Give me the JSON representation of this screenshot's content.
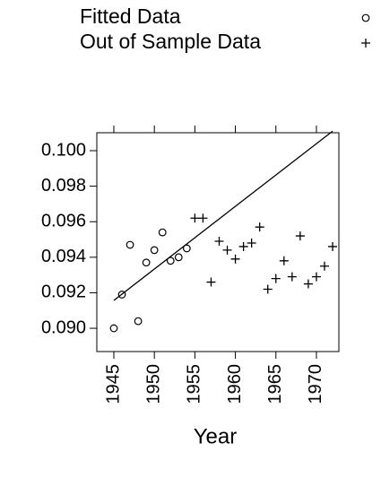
{
  "chart_data": {
    "type": "scatter",
    "xlabel": "Year",
    "xlim": [
      1942.9,
      1972.77
    ],
    "ylim": [
      0.08869,
      0.10101
    ],
    "xticks": [
      1945,
      1950,
      1955,
      1960,
      1965,
      1970
    ],
    "yticks": [
      {
        "value": 0.09,
        "label": "0.090"
      },
      0.092,
      0.094,
      0.096,
      0.098,
      {
        "value": 0.1,
        "label": "0.100"
      }
    ],
    "series": [
      {
        "name": "Fitted Data",
        "marker": "circle",
        "color": "#000000",
        "x": [
          1945,
          1946,
          1947,
          1948,
          1949,
          1950,
          1951,
          1952,
          1953,
          1954
        ],
        "values": [
          0.09,
          0.0919,
          0.0947,
          0.0904,
          0.0937,
          0.0944,
          0.0954,
          0.0938,
          0.094,
          0.0945
        ]
      },
      {
        "name": "Out of Sample Data",
        "marker": "plus",
        "color": "#000000",
        "x": [
          1955,
          1956,
          1957,
          1958,
          1959,
          1960,
          1961,
          1962,
          1963,
          1964,
          1965,
          1966,
          1967,
          1968,
          1969,
          1970,
          1971,
          1972
        ],
        "values": [
          0.0962,
          0.0962,
          0.0926,
          0.0949,
          0.0944,
          0.0939,
          0.0946,
          0.0948,
          0.0957,
          0.0922,
          0.0928,
          0.0938,
          0.0929,
          0.0952,
          0.0925,
          0.0929,
          0.0935,
          0.0946
        ]
      }
    ],
    "lines": [
      {
        "color": "#000000",
        "x": [
          1945,
          1972
        ],
        "values": [
          0.09157,
          0.1011
        ]
      }
    ]
  }
}
